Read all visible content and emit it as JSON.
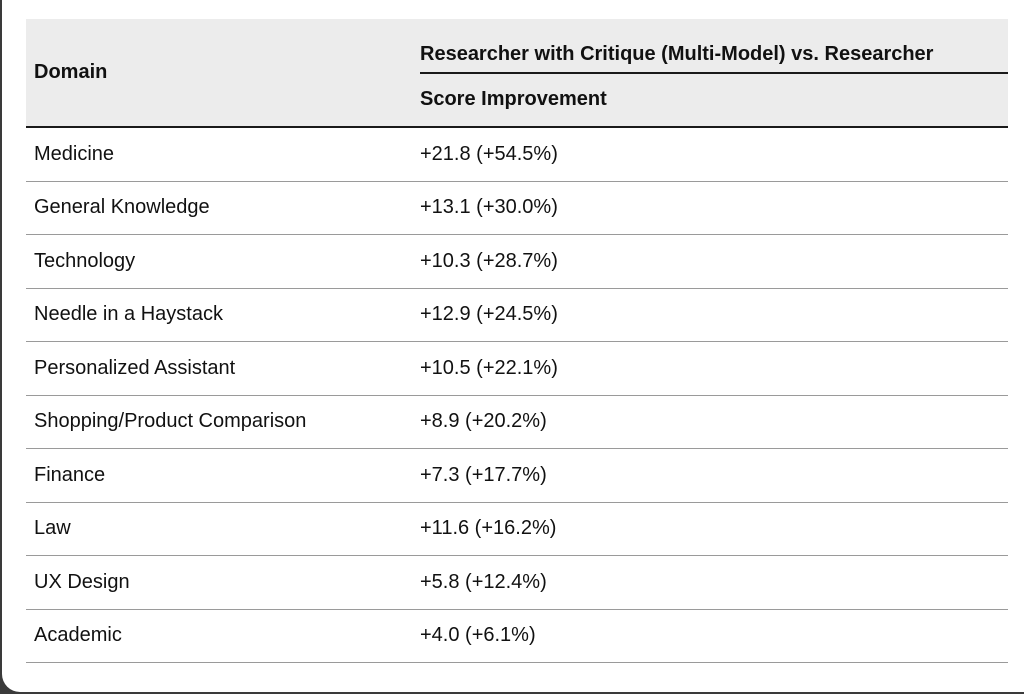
{
  "table": {
    "header": {
      "domain": "Domain",
      "group": "Researcher with Critique (Multi-Model) vs. Researcher",
      "sub": "Score Improvement"
    },
    "rows": [
      {
        "domain": "Medicine",
        "score": "+21.8 (+54.5%)"
      },
      {
        "domain": "General Knowledge",
        "score": "+13.1 (+30.0%)"
      },
      {
        "domain": "Technology",
        "score": "+10.3 (+28.7%)"
      },
      {
        "domain": "Needle in a Haystack",
        "score": "+12.9 (+24.5%)"
      },
      {
        "domain": "Personalized Assistant",
        "score": "+10.5 (+22.1%)"
      },
      {
        "domain": "Shopping/Product Comparison",
        "score": "+8.9 (+20.2%)"
      },
      {
        "domain": "Finance",
        "score": "+7.3 (+17.7%)"
      },
      {
        "domain": "Law",
        "score": "+11.6 (+16.2%)"
      },
      {
        "domain": "UX Design",
        "score": "+5.8 (+12.4%)"
      },
      {
        "domain": "Academic",
        "score": "+4.0 (+6.1%)"
      }
    ]
  }
}
